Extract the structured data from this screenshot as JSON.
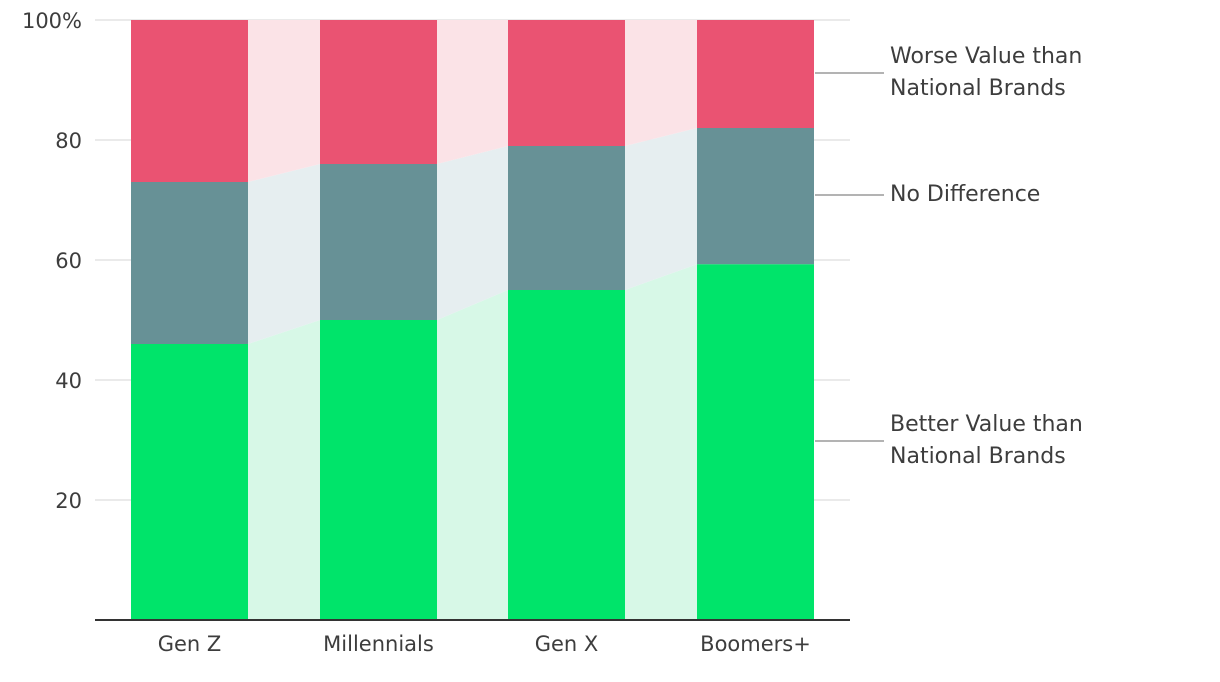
{
  "chart_data": {
    "type": "bar",
    "stacked": true,
    "percent": true,
    "categories": [
      "Gen Z",
      "Millennials",
      "Gen X",
      "Boomers+"
    ],
    "series": [
      {
        "name": "Better Value than National Brands",
        "values": [
          46,
          50,
          55,
          59.3
        ],
        "color": "#00e46a",
        "band_color": "#d7f8e7"
      },
      {
        "name": "No Difference",
        "values": [
          27,
          26,
          24,
          22.7
        ],
        "color": "#679196",
        "band_color": "#e6eef0"
      },
      {
        "name": "Worse Value than National Brands",
        "values": [
          27,
          24,
          21,
          18
        ],
        "color": "#ea5372",
        "band_color": "#fbe3e7"
      }
    ],
    "y_ticks": [
      {
        "value": 20,
        "label": "20"
      },
      {
        "value": 40,
        "label": "40"
      },
      {
        "value": 60,
        "label": "60"
      },
      {
        "value": 80,
        "label": "80"
      },
      {
        "value": 100,
        "label": "100%"
      }
    ],
    "ylim": [
      0,
      100
    ],
    "grid": true,
    "legend_placement": "right",
    "legend": {
      "worse_line1": "Worse Value than",
      "worse_line2": "National Brands",
      "no_diff": "No Difference",
      "better_line1": "Better Value than",
      "better_line2": "National Brands"
    },
    "title": "",
    "xlabel": "",
    "ylabel": ""
  }
}
